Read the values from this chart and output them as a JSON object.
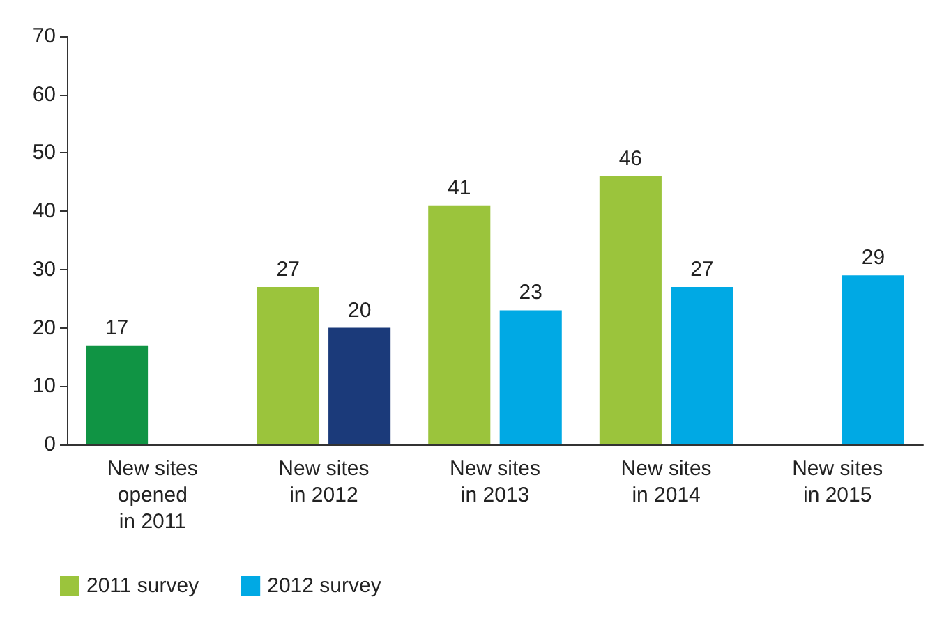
{
  "chart_data": {
    "type": "bar",
    "categories": [
      "New sites\nopened\nin 2011",
      "New sites\nin 2012",
      "New sites\nin 2013",
      "New sites\nin 2014",
      "New sites\nin 2015"
    ],
    "series": [
      {
        "name": "2011 survey",
        "color": "#9bc43c",
        "colors": [
          "#109444",
          "#9bc43c",
          "#9bc43c",
          "#9bc43c",
          "#9bc43c"
        ],
        "values": [
          17,
          27,
          41,
          46,
          null
        ]
      },
      {
        "name": "2012 survey",
        "color": "#00a9e4",
        "colors": [
          "#00a9e4",
          "#1b3a7a",
          "#00a9e4",
          "#00a9e4",
          "#00a9e4"
        ],
        "values": [
          null,
          20,
          23,
          27,
          29
        ]
      }
    ],
    "ylim": [
      0,
      70
    ],
    "yticks": [
      0,
      10,
      20,
      30,
      40,
      50,
      60,
      70
    ],
    "grid": false,
    "legend": "bottom left",
    "data_labels": true
  }
}
